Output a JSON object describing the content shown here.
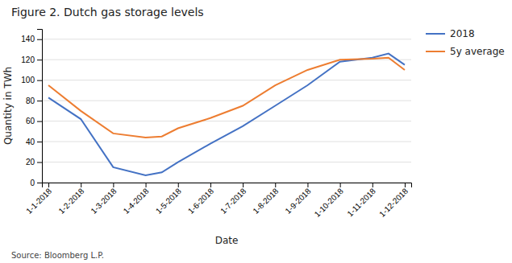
{
  "chart_data": {
    "type": "line",
    "title": "Figure 2. Dutch gas storage levels",
    "xlabel": "Date",
    "ylabel": "Quantity in TWh",
    "annotations": [
      "Source: Bloomberg L.P."
    ],
    "x": [
      0,
      1,
      2,
      3,
      3.5,
      4,
      5,
      6,
      7,
      8,
      9,
      10,
      10.5,
      11
    ],
    "series": [
      {
        "name": "2018",
        "color": "#4472C4",
        "values": [
          83,
          62,
          15,
          7,
          10,
          20,
          38,
          55,
          75,
          95,
          118,
          122,
          126,
          115
        ]
      },
      {
        "name": "5y average",
        "color": "#ED7D31",
        "values": [
          95,
          70,
          48,
          44,
          45,
          53,
          63,
          75,
          95,
          110,
          120,
          121,
          122,
          110
        ]
      }
    ],
    "xlim": [
      -0.2,
      11.2
    ],
    "xticks": [
      {
        "value": 0,
        "label": "1-1-2018"
      },
      {
        "value": 1,
        "label": "1-2-2018"
      },
      {
        "value": 2,
        "label": "1-3-2018"
      },
      {
        "value": 3,
        "label": "1-4-2018"
      },
      {
        "value": 4,
        "label": "1-5-2018"
      },
      {
        "value": 5,
        "label": "1-6-2018"
      },
      {
        "value": 6,
        "label": "1-7-2018"
      },
      {
        "value": 7,
        "label": "1-8-2018"
      },
      {
        "value": 8,
        "label": "1-9-2018"
      },
      {
        "value": 9,
        "label": "1-10-2018"
      },
      {
        "value": 10,
        "label": "1-11-2018"
      },
      {
        "value": 11,
        "label": "1-12-2018"
      }
    ],
    "ylim": [
      0,
      150
    ],
    "yticks": [
      0,
      20,
      40,
      60,
      80,
      100,
      120,
      140
    ],
    "grid": "y",
    "legend": "right"
  }
}
